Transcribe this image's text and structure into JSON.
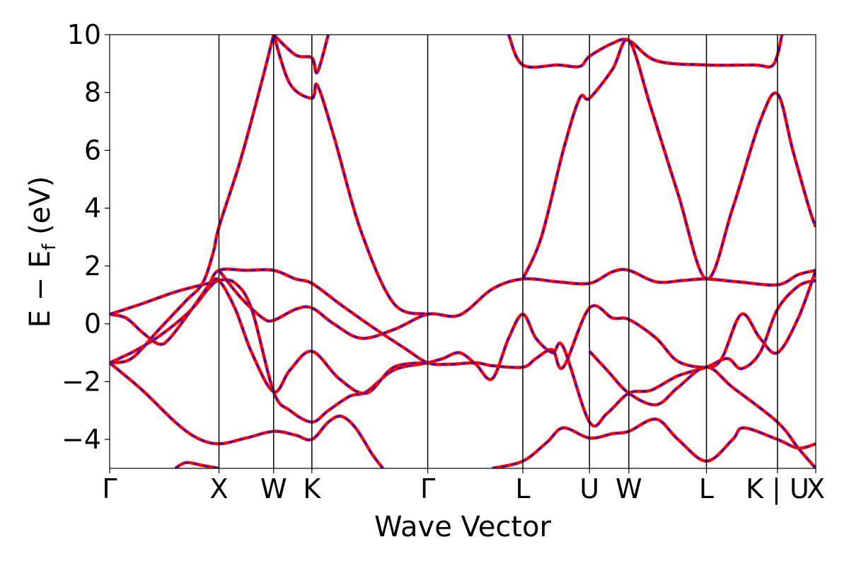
{
  "chart_data": {
    "type": "line",
    "title": "",
    "xlabel": "Wave Vector",
    "ylabel": "E − E",
    "ylabel_sub": "f",
    "ylabel_unit": " (eV)",
    "ylim": [
      -5,
      10
    ],
    "xlim": [
      0,
      6.46
    ],
    "yticks": [
      -4,
      -2,
      0,
      2,
      4,
      6,
      8,
      10
    ],
    "ytick_labels": [
      "−4",
      "−2",
      "0",
      "2",
      "4",
      "6",
      "8",
      "10"
    ],
    "kpoints": [
      {
        "label": "Γ",
        "x": 0.0
      },
      {
        "label": "X",
        "x": 1.0
      },
      {
        "label": "W",
        "x": 1.5
      },
      {
        "label": "K",
        "x": 1.85
      },
      {
        "label": "Γ",
        "x": 2.91
      },
      {
        "label": "L",
        "x": 3.78
      },
      {
        "label": "U",
        "x": 4.39
      },
      {
        "label": "W",
        "x": 4.75
      },
      {
        "label": "L",
        "x": 5.46
      },
      {
        "label": "K | U",
        "x": 6.11
      },
      {
        "label": "X",
        "x": 6.46
      }
    ],
    "series_colors": {
      "primary": "#ff0000",
      "overlay": "#0000ff"
    },
    "bands": [
      {
        "points": [
          [
            0,
            -1.35
          ],
          [
            0.3,
            -2.3
          ],
          [
            0.6,
            -3.4
          ],
          [
            0.8,
            -3.95
          ],
          [
            1.0,
            -4.15
          ],
          [
            1.25,
            -3.95
          ],
          [
            1.5,
            -3.72
          ],
          [
            1.7,
            -3.85
          ],
          [
            1.85,
            -4.0
          ],
          [
            2.0,
            -3.4
          ],
          [
            2.12,
            -3.2
          ],
          [
            2.25,
            -3.6
          ],
          [
            2.4,
            -4.5
          ],
          [
            2.5,
            -5.0
          ]
        ]
      },
      {
        "points": [
          [
            0,
            -1.35
          ],
          [
            0.25,
            -0.9
          ],
          [
            0.5,
            -0.3
          ],
          [
            0.75,
            0.5
          ],
          [
            0.9,
            1.2
          ],
          [
            1.0,
            1.5
          ],
          [
            1.15,
            1.4
          ],
          [
            1.3,
            0.5
          ],
          [
            1.5,
            -2.35
          ],
          [
            1.65,
            -3.0
          ],
          [
            1.85,
            -3.4
          ],
          [
            2.0,
            -3.0
          ],
          [
            2.2,
            -2.5
          ],
          [
            2.35,
            -2.35
          ],
          [
            2.6,
            -1.6
          ],
          [
            2.91,
            -1.35
          ],
          [
            3.05,
            -1.2
          ],
          [
            3.2,
            -1.0
          ],
          [
            3.35,
            -1.4
          ],
          [
            3.5,
            -1.9
          ],
          [
            3.65,
            -0.5
          ],
          [
            3.78,
            0.33
          ],
          [
            3.9,
            -0.5
          ],
          [
            4.05,
            -1.0
          ],
          [
            4.15,
            -0.8
          ],
          [
            4.39,
            -3.4
          ],
          [
            4.55,
            -3.1
          ],
          [
            4.75,
            -2.4
          ],
          [
            4.95,
            -2.3
          ],
          [
            5.2,
            -1.8
          ],
          [
            5.46,
            -1.5
          ],
          [
            5.65,
            -1.2
          ],
          [
            5.78,
            -1.55
          ],
          [
            5.95,
            -1.0
          ],
          [
            6.11,
            0.5
          ],
          [
            6.3,
            1.3
          ],
          [
            6.46,
            1.5
          ]
        ]
      },
      {
        "points": [
          [
            0,
            0.33
          ],
          [
            0.15,
            0.2
          ],
          [
            0.3,
            -0.3
          ],
          [
            0.45,
            -0.7
          ],
          [
            0.55,
            -0.5
          ],
          [
            0.75,
            0.5
          ],
          [
            0.9,
            1.3
          ],
          [
            1.0,
            1.85
          ],
          [
            1.25,
            1.85
          ],
          [
            1.5,
            1.85
          ],
          [
            1.7,
            1.55
          ],
          [
            1.85,
            1.4
          ],
          [
            2.1,
            0.7
          ],
          [
            2.4,
            -0.1
          ],
          [
            2.7,
            -0.85
          ],
          [
            2.91,
            -1.35
          ],
          [
            3.1,
            -1.4
          ],
          [
            3.35,
            -1.35
          ],
          [
            3.5,
            -1.45
          ],
          [
            3.78,
            -1.5
          ],
          [
            3.9,
            -1.2
          ],
          [
            4.05,
            -0.9
          ],
          [
            4.15,
            -1.5
          ],
          [
            4.39,
            0.55
          ],
          [
            4.6,
            0.2
          ],
          [
            4.75,
            0.15
          ],
          [
            5.0,
            -0.5
          ],
          [
            5.2,
            -1.3
          ],
          [
            5.46,
            -1.5
          ],
          [
            5.6,
            -1.2
          ],
          [
            5.78,
            0.33
          ],
          [
            5.95,
            -0.5
          ],
          [
            6.11,
            -1.0
          ],
          [
            6.3,
            0.2
          ],
          [
            6.46,
            1.85
          ]
        ]
      },
      {
        "points": [
          [
            0,
            0.33
          ],
          [
            0.3,
            0.7
          ],
          [
            0.6,
            1.1
          ],
          [
            0.9,
            1.4
          ],
          [
            1.0,
            1.5
          ],
          [
            1.15,
            0.5
          ],
          [
            1.3,
            -1.0
          ],
          [
            1.5,
            -2.35
          ],
          [
            1.65,
            -1.6
          ],
          [
            1.85,
            -0.95
          ],
          [
            2.1,
            -1.9
          ],
          [
            2.35,
            -2.4
          ],
          [
            2.6,
            -1.5
          ],
          [
            2.91,
            -1.35
          ]
        ]
      },
      {
        "points": [
          [
            0,
            -1.35
          ],
          [
            0.2,
            -1.2
          ],
          [
            0.45,
            -0.2
          ],
          [
            0.7,
            0.8
          ],
          [
            0.85,
            1.4
          ],
          [
            0.95,
            2.5
          ],
          [
            1.0,
            3.35
          ],
          [
            1.2,
            5.7
          ],
          [
            1.4,
            8.5
          ],
          [
            1.5,
            10.0
          ]
        ]
      },
      {
        "points": [
          [
            1.0,
            1.85
          ],
          [
            1.2,
            0.9
          ],
          [
            1.4,
            0.2
          ],
          [
            1.5,
            0.12
          ],
          [
            1.7,
            0.5
          ],
          [
            1.85,
            0.55
          ],
          [
            2.05,
            0.0
          ],
          [
            2.3,
            -0.5
          ],
          [
            2.6,
            -0.2
          ],
          [
            2.91,
            0.33
          ],
          [
            3.2,
            0.3
          ],
          [
            3.5,
            1.2
          ],
          [
            3.78,
            1.55
          ],
          [
            4.1,
            1.45
          ],
          [
            4.39,
            1.4
          ],
          [
            4.6,
            1.8
          ],
          [
            4.75,
            1.85
          ],
          [
            5.0,
            1.45
          ],
          [
            5.25,
            1.5
          ],
          [
            5.46,
            1.55
          ],
          [
            5.75,
            1.45
          ],
          [
            6.11,
            1.35
          ],
          [
            6.3,
            1.7
          ],
          [
            6.46,
            1.85
          ]
        ]
      },
      {
        "points": [
          [
            1.5,
            10.0
          ],
          [
            1.65,
            8.3
          ],
          [
            1.85,
            7.8
          ],
          [
            1.9,
            8.25
          ],
          [
            2.05,
            6.5
          ],
          [
            2.3,
            3.2
          ],
          [
            2.6,
            0.7
          ],
          [
            2.91,
            0.33
          ]
        ]
      },
      {
        "points": [
          [
            1.5,
            10.0
          ],
          [
            1.7,
            9.3
          ],
          [
            1.85,
            9.2
          ],
          [
            1.9,
            8.7
          ],
          [
            2.0,
            10.0
          ]
        ]
      },
      {
        "points": [
          [
            3.65,
            10.0
          ],
          [
            3.78,
            8.95
          ],
          [
            4.1,
            8.95
          ],
          [
            4.3,
            8.9
          ],
          [
            4.39,
            9.25
          ],
          [
            4.6,
            9.7
          ],
          [
            4.75,
            9.8
          ],
          [
            5.0,
            9.1
          ],
          [
            5.46,
            8.95
          ],
          [
            5.9,
            8.95
          ],
          [
            6.05,
            8.9
          ],
          [
            6.11,
            9.3
          ],
          [
            6.15,
            10.0
          ]
        ]
      },
      {
        "points": [
          [
            3.78,
            1.55
          ],
          [
            3.95,
            3.0
          ],
          [
            4.15,
            6.0
          ],
          [
            4.3,
            7.8
          ],
          [
            4.39,
            7.8
          ],
          [
            4.6,
            8.8
          ],
          [
            4.75,
            9.8
          ],
          [
            4.95,
            7.5
          ],
          [
            5.2,
            4.5
          ],
          [
            5.46,
            1.55
          ],
          [
            5.7,
            4.0
          ],
          [
            5.95,
            7.0
          ],
          [
            6.11,
            7.95
          ],
          [
            6.25,
            6.0
          ],
          [
            6.4,
            4.0
          ],
          [
            6.46,
            3.35
          ]
        ]
      },
      {
        "points": [
          [
            3.5,
            -5.0
          ],
          [
            3.78,
            -4.75
          ],
          [
            4.0,
            -4.1
          ],
          [
            4.15,
            -3.6
          ],
          [
            4.39,
            -3.95
          ],
          [
            4.6,
            -3.8
          ],
          [
            4.75,
            -3.72
          ],
          [
            5.0,
            -3.3
          ],
          [
            5.2,
            -4.0
          ],
          [
            5.46,
            -4.75
          ],
          [
            5.7,
            -4.0
          ],
          [
            5.8,
            -3.6
          ],
          [
            6.11,
            -4.0
          ],
          [
            6.3,
            -4.3
          ],
          [
            6.46,
            -4.15
          ]
        ]
      },
      {
        "points": [
          [
            4.39,
            -0.95
          ],
          [
            4.55,
            -1.6
          ],
          [
            4.75,
            -2.4
          ],
          [
            5.0,
            -2.8
          ],
          [
            5.2,
            -2.2
          ],
          [
            5.46,
            -1.5
          ],
          [
            5.7,
            -2.2
          ],
          [
            6.11,
            -3.4
          ],
          [
            6.3,
            -4.3
          ],
          [
            6.46,
            -5.0
          ]
        ]
      },
      {
        "points": [
          [
            0.6,
            -5.0
          ],
          [
            0.7,
            -4.8
          ],
          [
            0.85,
            -4.9
          ],
          [
            1.0,
            -5.0
          ]
        ]
      }
    ]
  }
}
